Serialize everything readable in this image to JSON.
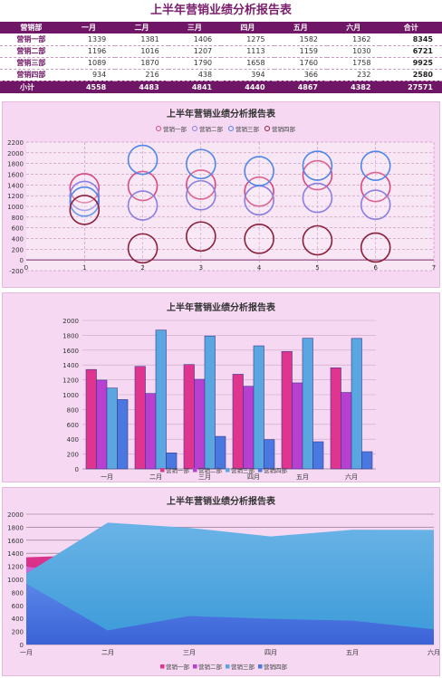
{
  "report": {
    "title": "上半年营销业绩分析报告表"
  },
  "table": {
    "corner": "营销部",
    "months": [
      "一月",
      "二月",
      "三月",
      "四月",
      "五月",
      "六月"
    ],
    "total_header": "合计",
    "rows": [
      {
        "name": "营销一部",
        "values": [
          1339,
          1381,
          1406,
          1275,
          1582,
          1362
        ],
        "sum": 8345
      },
      {
        "name": "营销二部",
        "values": [
          1196,
          1016,
          1207,
          1113,
          1159,
          1030
        ],
        "sum": 6721
      },
      {
        "name": "营销三部",
        "values": [
          1089,
          1870,
          1790,
          1658,
          1760,
          1758
        ],
        "sum": 9925
      },
      {
        "name": "营销四部",
        "values": [
          934,
          216,
          438,
          394,
          366,
          232
        ],
        "sum": 2580
      }
    ],
    "subtotal": {
      "name": "小计",
      "values": [
        4558,
        4483,
        4841,
        4440,
        4867,
        4382
      ],
      "sum": 27571
    }
  },
  "colors": {
    "series": [
      "#e0358f",
      "#b93fd0",
      "#5aa6e0",
      "#4a78e0"
    ],
    "bubble_strokes": [
      "#d9487e",
      "#8a7ee0",
      "#4f86e8",
      "#8a1f3a"
    ],
    "header_bg": "#6f1766",
    "panel_bg": "#f6d8f2"
  },
  "chart_data": [
    {
      "type": "scatter",
      "title": "上半年营销业绩分析报告表",
      "legend_position": "top",
      "x": [
        1,
        2,
        3,
        4,
        5,
        6
      ],
      "xlim": [
        0,
        7
      ],
      "ylim": [
        -200,
        2200
      ],
      "y_ticks": [
        -200,
        0,
        200,
        400,
        600,
        800,
        1000,
        1200,
        1400,
        1600,
        1800,
        2000,
        2200
      ],
      "x_ticks": [
        0,
        1,
        2,
        3,
        4,
        5,
        6,
        7
      ],
      "grid": true,
      "series": [
        {
          "name": "营销一部",
          "values": [
            1339,
            1381,
            1406,
            1275,
            1582,
            1362
          ]
        },
        {
          "name": "营销二部",
          "values": [
            1196,
            1016,
            1207,
            1113,
            1159,
            1030
          ]
        },
        {
          "name": "营销三部",
          "values": [
            1089,
            1870,
            1790,
            1658,
            1760,
            1758
          ]
        },
        {
          "name": "营销四部",
          "values": [
            934,
            216,
            438,
            394,
            366,
            232
          ]
        }
      ]
    },
    {
      "type": "bar",
      "title": "上半年营销业绩分析报告表",
      "legend_position": "bottom",
      "categories": [
        "一月",
        "二月",
        "三月",
        "四月",
        "五月",
        "六月"
      ],
      "ylim": [
        0,
        2000
      ],
      "y_ticks": [
        0,
        200,
        400,
        600,
        800,
        1000,
        1200,
        1400,
        1600,
        1800,
        2000
      ],
      "grid": true,
      "series": [
        {
          "name": "营销一部",
          "values": [
            1339,
            1381,
            1406,
            1275,
            1582,
            1362
          ]
        },
        {
          "name": "营销二部",
          "values": [
            1196,
            1016,
            1207,
            1113,
            1159,
            1030
          ]
        },
        {
          "name": "营销三部",
          "values": [
            1089,
            1870,
            1790,
            1658,
            1760,
            1758
          ]
        },
        {
          "name": "营销四部",
          "values": [
            934,
            216,
            438,
            394,
            366,
            232
          ]
        }
      ]
    },
    {
      "type": "area",
      "title": "上半年营销业绩分析报告表",
      "legend_position": "bottom",
      "categories": [
        "一月",
        "二月",
        "三月",
        "四月",
        "五月",
        "六月"
      ],
      "ylim": [
        0,
        2000
      ],
      "y_ticks": [
        0,
        200,
        400,
        600,
        800,
        1000,
        1200,
        1400,
        1600,
        1800,
        2000
      ],
      "grid": true,
      "series": [
        {
          "name": "营销一部",
          "values": [
            1339,
            1381,
            1406,
            1275,
            1582,
            1362
          ]
        },
        {
          "name": "营销二部",
          "values": [
            1196,
            1016,
            1207,
            1113,
            1159,
            1030
          ]
        },
        {
          "name": "营销三部",
          "values": [
            1089,
            1870,
            1790,
            1658,
            1760,
            1758
          ]
        },
        {
          "name": "营销四部",
          "values": [
            934,
            216,
            438,
            394,
            366,
            232
          ]
        }
      ]
    }
  ]
}
